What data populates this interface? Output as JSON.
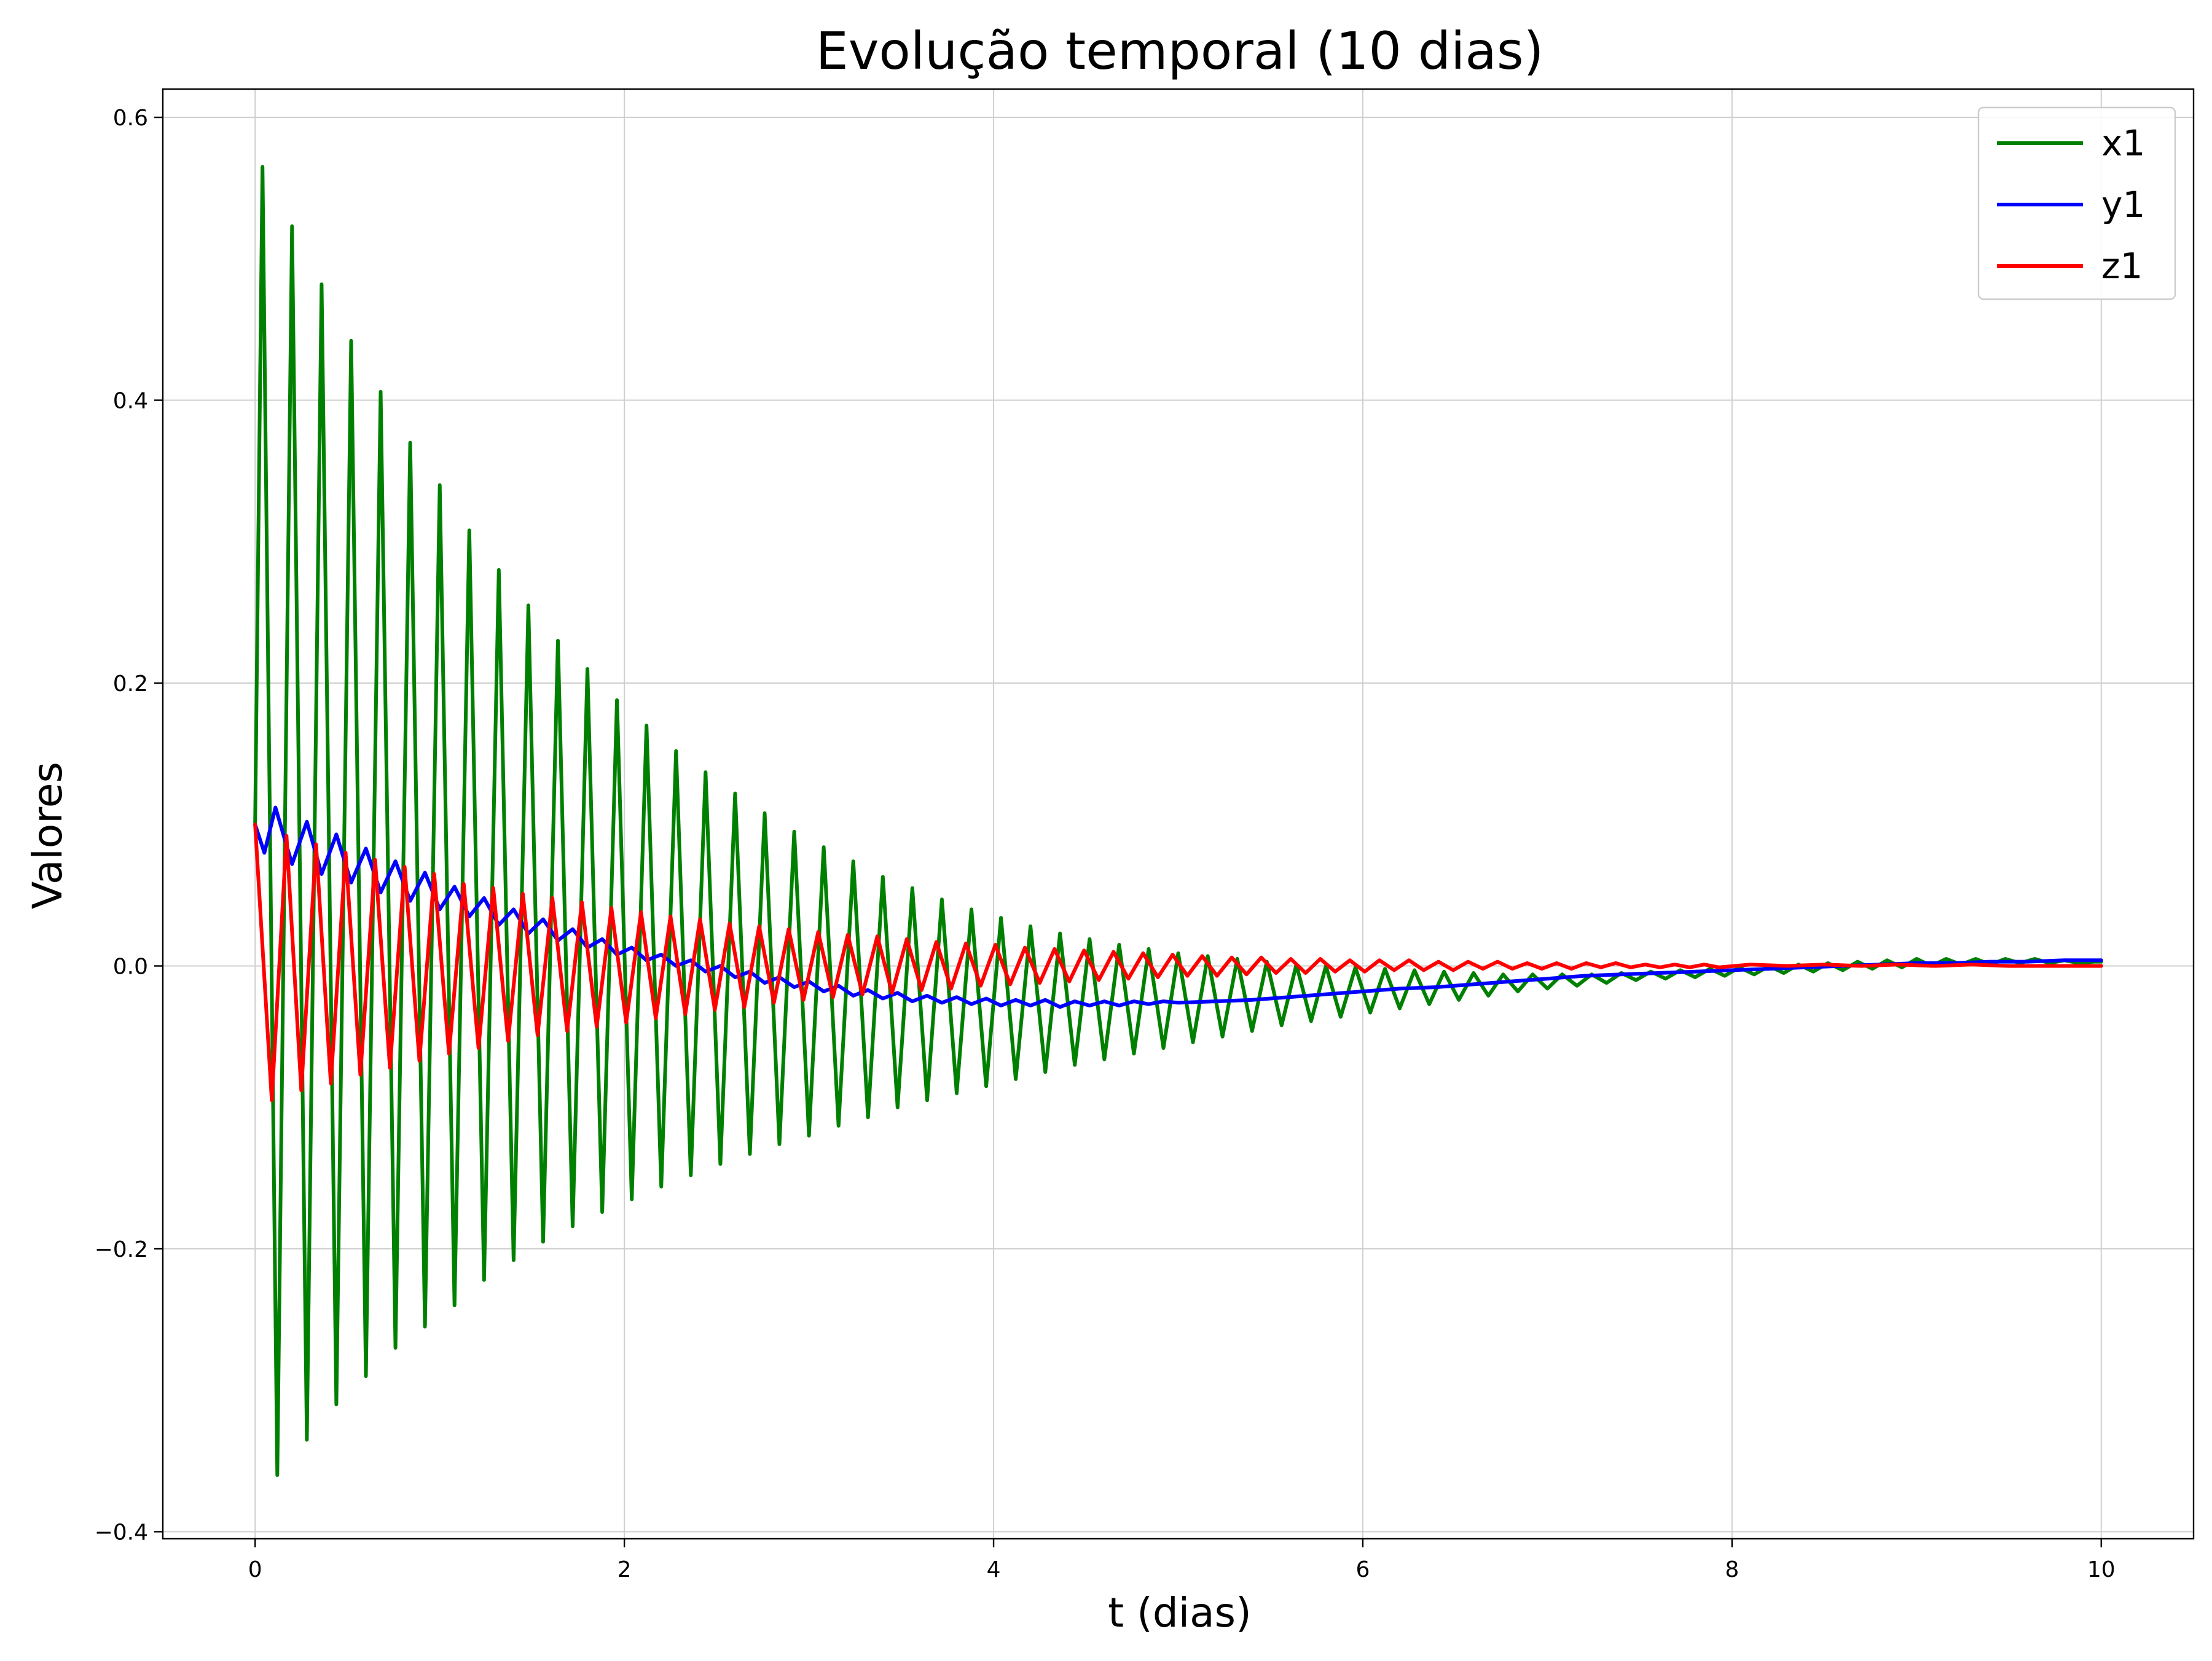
{
  "chart_data": {
    "type": "line",
    "title": "Evolução temporal (10 dias)",
    "xlabel": "t (dias)",
    "ylabel": "Valores",
    "xlim": [
      -0.5,
      10.5
    ],
    "ylim": [
      -0.405,
      0.62
    ],
    "xticks": [
      0,
      2,
      4,
      6,
      8,
      10
    ],
    "xtick_labels": [
      "0",
      "2",
      "4",
      "6",
      "8",
      "10"
    ],
    "yticks": [
      -0.4,
      -0.2,
      0.0,
      0.2,
      0.4,
      0.6
    ],
    "ytick_labels": [
      "−0.4",
      "−0.2",
      "0.0",
      "0.2",
      "0.4",
      "0.6"
    ],
    "grid": true,
    "legend_position": "top-right",
    "series": [
      {
        "name": "x1",
        "color": "#008000",
        "x": [
          0,
          0.04,
          0.12,
          0.2,
          0.28,
          0.36,
          0.44,
          0.52,
          0.6,
          0.68,
          0.76,
          0.84,
          0.92,
          1.0,
          1.08,
          1.16,
          1.24,
          1.32,
          1.4,
          1.48,
          1.56,
          1.64,
          1.72,
          1.8,
          1.88,
          1.96,
          2.04,
          2.12,
          2.2,
          2.28,
          2.36,
          2.44,
          2.52,
          2.6,
          2.68,
          2.76,
          2.84,
          2.92,
          3.0,
          3.08,
          3.16,
          3.24,
          3.32,
          3.4,
          3.48,
          3.56,
          3.64,
          3.72,
          3.8,
          3.88,
          3.96,
          4.04,
          4.12,
          4.2,
          4.28,
          4.36,
          4.44,
          4.52,
          4.6,
          4.68,
          4.76,
          4.84,
          4.92,
          5.0,
          5.08,
          5.16,
          5.24,
          5.32,
          5.4,
          5.48,
          5.56,
          5.64,
          5.72,
          5.8,
          5.88,
          5.96,
          6.04,
          6.12,
          6.2,
          6.28,
          6.36,
          6.44,
          6.52,
          6.6,
          6.68,
          6.76,
          6.84,
          6.92,
          7.0,
          7.08,
          7.16,
          7.24,
          7.32,
          7.4,
          7.48,
          7.56,
          7.64,
          7.72,
          7.8,
          7.88,
          7.96,
          8.04,
          8.12,
          8.2,
          8.28,
          8.36,
          8.44,
          8.52,
          8.6,
          8.68,
          8.76,
          8.84,
          8.92,
          9.0,
          9.08,
          9.16,
          9.24,
          9.32,
          9.4,
          9.48,
          9.56,
          9.64,
          9.72,
          9.8,
          9.88,
          9.96,
          10.0
        ],
        "y": [
          0.1,
          0.565,
          -0.36,
          0.523,
          -0.335,
          0.482,
          -0.31,
          0.442,
          -0.29,
          0.406,
          -0.27,
          0.37,
          -0.255,
          0.34,
          -0.24,
          0.308,
          -0.222,
          0.28,
          -0.208,
          0.255,
          -0.195,
          0.23,
          -0.184,
          0.21,
          -0.174,
          0.188,
          -0.165,
          0.17,
          -0.156,
          0.152,
          -0.148,
          0.137,
          -0.14,
          0.122,
          -0.133,
          0.108,
          -0.126,
          0.095,
          -0.12,
          0.084,
          -0.113,
          0.074,
          -0.107,
          0.063,
          -0.1,
          0.055,
          -0.095,
          0.047,
          -0.09,
          0.04,
          -0.085,
          0.034,
          -0.08,
          0.028,
          -0.075,
          0.023,
          -0.07,
          0.019,
          -0.066,
          0.015,
          -0.062,
          0.012,
          -0.058,
          0.009,
          -0.054,
          0.007,
          -0.05,
          0.005,
          -0.046,
          0.003,
          -0.042,
          0.001,
          -0.039,
          0.0,
          -0.036,
          -0.001,
          -0.033,
          -0.002,
          -0.03,
          -0.003,
          -0.027,
          -0.004,
          -0.024,
          -0.005,
          -0.021,
          -0.006,
          -0.018,
          -0.006,
          -0.016,
          -0.006,
          -0.014,
          -0.006,
          -0.012,
          -0.005,
          -0.01,
          -0.004,
          -0.009,
          -0.003,
          -0.008,
          -0.002,
          -0.007,
          -0.001,
          -0.006,
          0.0,
          -0.005,
          0.001,
          -0.004,
          0.002,
          -0.003,
          0.003,
          -0.002,
          0.004,
          -0.001,
          0.005,
          0.0,
          0.005,
          0.001,
          0.005,
          0.001,
          0.005,
          0.002,
          0.005,
          0.002,
          0.004,
          0.002,
          0.003,
          0.003
        ]
      },
      {
        "name": "y1",
        "color": "#0000ff",
        "x": [
          0,
          0.05,
          0.11,
          0.2,
          0.28,
          0.36,
          0.44,
          0.52,
          0.6,
          0.68,
          0.76,
          0.84,
          0.92,
          1.0,
          1.08,
          1.16,
          1.24,
          1.32,
          1.4,
          1.48,
          1.56,
          1.64,
          1.72,
          1.8,
          1.88,
          1.96,
          2.04,
          2.12,
          2.2,
          2.28,
          2.36,
          2.44,
          2.52,
          2.6,
          2.68,
          2.76,
          2.84,
          2.92,
          3.0,
          3.08,
          3.16,
          3.24,
          3.32,
          3.4,
          3.48,
          3.56,
          3.64,
          3.72,
          3.8,
          3.88,
          3.96,
          4.04,
          4.12,
          4.2,
          4.28,
          4.36,
          4.44,
          4.52,
          4.6,
          4.68,
          4.76,
          4.84,
          4.92,
          5.0,
          5.2,
          5.4,
          5.6,
          5.8,
          6.0,
          6.2,
          6.4,
          6.6,
          6.8,
          7.0,
          7.2,
          7.4,
          7.6,
          7.8,
          8.0,
          8.2,
          8.4,
          8.6,
          8.8,
          9.0,
          9.2,
          9.4,
          9.6,
          9.8,
          10.0
        ],
        "y": [
          0.1,
          0.08,
          0.112,
          0.072,
          0.102,
          0.065,
          0.093,
          0.059,
          0.083,
          0.052,
          0.074,
          0.046,
          0.066,
          0.04,
          0.056,
          0.035,
          0.048,
          0.029,
          0.04,
          0.023,
          0.033,
          0.018,
          0.026,
          0.013,
          0.019,
          0.008,
          0.013,
          0.004,
          0.008,
          0.0,
          0.004,
          -0.004,
          0.0,
          -0.008,
          -0.004,
          -0.012,
          -0.008,
          -0.015,
          -0.011,
          -0.018,
          -0.014,
          -0.021,
          -0.017,
          -0.023,
          -0.019,
          -0.025,
          -0.021,
          -0.026,
          -0.022,
          -0.027,
          -0.023,
          -0.028,
          -0.024,
          -0.028,
          -0.024,
          -0.029,
          -0.025,
          -0.028,
          -0.025,
          -0.028,
          -0.025,
          -0.027,
          -0.025,
          -0.026,
          -0.025,
          -0.024,
          -0.022,
          -0.02,
          -0.018,
          -0.016,
          -0.015,
          -0.013,
          -0.011,
          -0.009,
          -0.007,
          -0.006,
          -0.005,
          -0.004,
          -0.003,
          -0.002,
          -0.001,
          0.0,
          0.001,
          0.002,
          0.002,
          0.003,
          0.003,
          0.004,
          0.004
        ]
      },
      {
        "name": "z1",
        "color": "#ff0000",
        "x": [
          0,
          0.09,
          0.17,
          0.25,
          0.33,
          0.41,
          0.49,
          0.57,
          0.65,
          0.73,
          0.81,
          0.89,
          0.97,
          1.05,
          1.13,
          1.21,
          1.29,
          1.37,
          1.45,
          1.53,
          1.61,
          1.69,
          1.77,
          1.85,
          1.93,
          2.01,
          2.09,
          2.17,
          2.25,
          2.33,
          2.41,
          2.49,
          2.57,
          2.65,
          2.73,
          2.81,
          2.89,
          2.97,
          3.05,
          3.13,
          3.21,
          3.29,
          3.37,
          3.45,
          3.53,
          3.61,
          3.69,
          3.77,
          3.85,
          3.93,
          4.01,
          4.09,
          4.17,
          4.25,
          4.33,
          4.41,
          4.49,
          4.57,
          4.65,
          4.73,
          4.81,
          4.89,
          4.97,
          5.05,
          5.13,
          5.21,
          5.29,
          5.37,
          5.45,
          5.53,
          5.61,
          5.69,
          5.77,
          5.85,
          5.93,
          6.01,
          6.09,
          6.17,
          6.25,
          6.33,
          6.41,
          6.49,
          6.57,
          6.65,
          6.73,
          6.81,
          6.89,
          6.97,
          7.05,
          7.13,
          7.21,
          7.29,
          7.37,
          7.45,
          7.53,
          7.61,
          7.69,
          7.77,
          7.85,
          7.93,
          8.1,
          8.3,
          8.5,
          8.7,
          8.9,
          9.1,
          9.3,
          9.5,
          9.7,
          10.0
        ],
        "y": [
          0.1,
          -0.095,
          0.092,
          -0.088,
          0.086,
          -0.083,
          0.08,
          -0.077,
          0.075,
          -0.072,
          0.07,
          -0.067,
          0.065,
          -0.062,
          0.058,
          -0.058,
          0.055,
          -0.053,
          0.051,
          -0.049,
          0.048,
          -0.046,
          0.045,
          -0.043,
          0.041,
          -0.04,
          0.038,
          -0.037,
          0.035,
          -0.034,
          0.033,
          -0.031,
          0.03,
          -0.029,
          0.028,
          -0.026,
          0.026,
          -0.024,
          0.024,
          -0.022,
          0.022,
          -0.02,
          0.021,
          -0.019,
          0.019,
          -0.017,
          0.017,
          -0.016,
          0.016,
          -0.014,
          0.015,
          -0.013,
          0.013,
          -0.012,
          0.012,
          -0.011,
          0.011,
          -0.01,
          0.01,
          -0.009,
          0.009,
          -0.008,
          0.008,
          -0.007,
          0.007,
          -0.007,
          0.006,
          -0.006,
          0.006,
          -0.005,
          0.005,
          -0.005,
          0.005,
          -0.004,
          0.004,
          -0.004,
          0.004,
          -0.003,
          0.004,
          -0.003,
          0.003,
          -0.003,
          0.003,
          -0.002,
          0.003,
          -0.002,
          0.002,
          -0.002,
          0.002,
          -0.002,
          0.002,
          -0.001,
          0.002,
          -0.001,
          0.001,
          -0.001,
          0.001,
          -0.001,
          0.001,
          -0.001,
          0.001,
          0.0,
          0.001,
          0.0,
          0.001,
          0.0,
          0.001,
          0.0,
          0.0,
          0.0
        ]
      }
    ]
  }
}
